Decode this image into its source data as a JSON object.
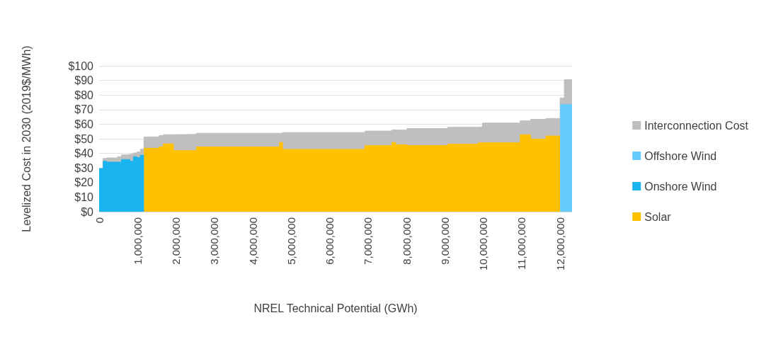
{
  "chart_data": {
    "type": "area",
    "stacked": true,
    "xlabel": "NREL Technical Potential (GWh)",
    "ylabel": "Levelized Cost in 2030 (2019$/MWh)",
    "x": [
      0,
      105000,
      105000,
      197000,
      197000,
      479000,
      479000,
      583000,
      583000,
      798000,
      798000,
      890000,
      890000,
      982000,
      982000,
      1074000,
      1074000,
      1166000,
      1166000,
      1565000,
      1565000,
      1670000,
      1670000,
      1934000,
      1934000,
      2535000,
      2535000,
      4696000,
      4696000,
      4775000,
      4775000,
      6920000,
      6920000,
      7620000,
      7620000,
      7720000,
      7720000,
      8010000,
      8010000,
      9080000,
      9080000,
      9870000,
      9870000,
      9980000,
      9980000,
      10960000,
      10960000,
      11230000,
      11230000,
      11630000,
      11630000,
      12000000,
      12000000,
      12110000,
      12110000,
      12310000
    ],
    "xlim": [
      0,
      12310000
    ],
    "xticks": [
      0,
      {
        "value": 1000000,
        "label": "1,000,000"
      },
      {
        "value": 2000000,
        "label": "2,000,000"
      },
      {
        "value": 3000000,
        "label": "3,000,000"
      },
      {
        "value": 4000000,
        "label": "4,000,000"
      },
      {
        "value": 5000000,
        "label": "5,000,000"
      },
      {
        "value": 6000000,
        "label": "6,000,000"
      },
      {
        "value": 7000000,
        "label": "7,000,000"
      },
      {
        "value": 8000000,
        "label": "8,000,000"
      },
      {
        "value": 9000000,
        "label": "9,000,000"
      },
      {
        "value": 10000000,
        "label": "10,000,000"
      },
      {
        "value": 11000000,
        "label": "11,000,000"
      },
      {
        "value": 12000000,
        "label": "12,000,000"
      }
    ],
    "ylim": [
      0,
      100
    ],
    "yticks": [
      {
        "value": 0,
        "label": "$0"
      },
      {
        "value": 10,
        "label": "$10"
      },
      {
        "value": 20,
        "label": "$20"
      },
      {
        "value": 30,
        "label": "$30"
      },
      {
        "value": 40,
        "label": "$40"
      },
      {
        "value": 50,
        "label": "$50"
      },
      {
        "value": 60,
        "label": "$60"
      },
      {
        "value": 70,
        "label": "$70"
      },
      {
        "value": 80,
        "label": "$80"
      },
      {
        "value": 90,
        "label": "$90"
      },
      {
        "value": 100,
        "label": "$100"
      }
    ],
    "grid": "y",
    "legend": "right",
    "marker": "none",
    "series": [
      {
        "name": "Solar",
        "color": "#ffc000",
        "values": [
          null,
          null,
          null,
          null,
          null,
          null,
          null,
          null,
          null,
          null,
          null,
          null,
          null,
          null,
          null,
          null,
          null,
          null,
          43.5,
          43.5,
          44.4,
          44.4,
          46.5,
          46.5,
          41.9,
          41.9,
          44.4,
          44.4,
          47.5,
          47.5,
          42.7,
          42.7,
          45.3,
          45.3,
          47.5,
          47.5,
          45.9,
          45.9,
          45.4,
          45.4,
          46.3,
          46.3,
          47.3,
          47.3,
          47.3,
          47.3,
          52.8,
          52.8,
          49.8,
          49.8,
          51.9,
          51.9,
          null,
          null,
          null,
          null
        ]
      },
      {
        "name": "Onshore Wind",
        "color": "#1ab4f0",
        "values": [
          29.6,
          29.6,
          34.6,
          34.6,
          34.0,
          34.0,
          34.0,
          34.0,
          35.8,
          35.8,
          34.6,
          34.6,
          37.7,
          37.7,
          37.1,
          37.1,
          38.7,
          38.7,
          null,
          null,
          null,
          null,
          null,
          null,
          null,
          null,
          null,
          null,
          null,
          null,
          null,
          null,
          null,
          null,
          null,
          null,
          null,
          null,
          null,
          null,
          null,
          null,
          null,
          null,
          null,
          null,
          null,
          null,
          null,
          null,
          null,
          null,
          null,
          null,
          null,
          null
        ]
      },
      {
        "name": "Offshore Wind",
        "color": "#66ccff",
        "values": [
          null,
          null,
          null,
          null,
          null,
          null,
          null,
          null,
          null,
          null,
          null,
          null,
          null,
          null,
          null,
          null,
          null,
          null,
          null,
          null,
          null,
          null,
          null,
          null,
          null,
          null,
          null,
          null,
          null,
          null,
          null,
          null,
          null,
          null,
          null,
          null,
          null,
          null,
          null,
          null,
          null,
          null,
          null,
          null,
          null,
          null,
          null,
          null,
          null,
          null,
          null,
          null,
          73.4,
          73.4,
          73.4,
          73.4
        ]
      },
      {
        "name": "Interconnection Cost",
        "color": "#bfbfbf",
        "values": [
          0,
          0,
          1.9,
          1.9,
          2.9,
          2.9,
          3.7,
          3.7,
          3.2,
          3.2,
          4.8,
          4.8,
          2.6,
          2.6,
          3.8,
          3.8,
          4.1,
          4.1,
          7.8,
          7.8,
          7.8,
          7.8,
          6.3,
          6.3,
          11.1,
          11.1,
          9.4,
          9.4,
          6.3,
          6.3,
          11.6,
          11.6,
          10.0,
          10.0,
          8.5,
          8.5,
          10.1,
          10.1,
          11.6,
          11.6,
          11.6,
          11.6,
          10.9,
          10.9,
          13.5,
          13.5,
          9.5,
          9.5,
          13.5,
          13.5,
          12.0,
          12.0,
          4.6,
          4.6,
          17.1,
          17.1
        ]
      }
    ]
  }
}
